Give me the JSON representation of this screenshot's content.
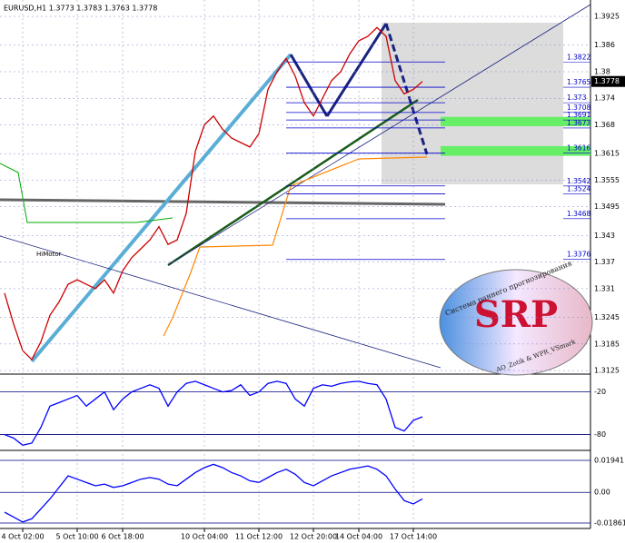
{
  "chart_data": [
    {
      "type": "line",
      "title": "EURUSD,H1  1.3773 1.3783 1.3763 1.3778",
      "color": "#cc0000",
      "values": [
        1.33,
        1.323,
        1.317,
        1.315,
        1.319,
        1.325,
        1.328,
        1.332,
        1.333,
        1.332,
        1.331,
        1.333,
        1.33,
        1.335,
        1.338,
        1.34,
        1.342,
        1.345,
        1.341,
        1.342,
        1.348,
        1.362,
        1.368,
        1.37,
        1.367,
        1.365,
        1.364,
        1.363,
        1.366,
        1.376,
        1.38,
        1.383,
        1.379,
        1.373,
        1.37,
        1.374,
        1.378,
        1.38,
        1.384,
        1.387,
        1.388,
        1.39,
        1.388,
        1.378,
        1.375,
        1.376,
        1.3778
      ],
      "ylim": [
        1.3117,
        1.3962
      ],
      "yticks": [
        1.3925,
        1.386,
        1.38,
        1.374,
        1.368,
        1.3615,
        1.3555,
        1.3495,
        1.343,
        1.337,
        1.331,
        1.3245,
        1.3185,
        1.3125
      ],
      "levels": [
        1.3822,
        1.3765,
        1.373,
        1.3708,
        1.3691,
        1.3673,
        1.3616,
        1.3542,
        1.3524,
        1.3468,
        1.3376
      ],
      "zones": [
        [
          1.3698,
          1.3677
        ],
        [
          1.3632,
          1.361
        ]
      ],
      "last_price": 1.3778,
      "annotations": [
        "HiMotor",
        "SRP",
        "Система раннего прогнозирования",
        "AO_Zotik & WPR_VSmark"
      ]
    },
    {
      "type": "line",
      "color": "#0000ff",
      "values": [
        -80,
        -85,
        -95,
        -92,
        -70,
        -40,
        -35,
        -30,
        -25,
        -40,
        -30,
        -20,
        -45,
        -30,
        -20,
        -15,
        -10,
        -15,
        -40,
        -20,
        -8,
        -5,
        -10,
        -15,
        -20,
        -18,
        -10,
        -25,
        -20,
        -8,
        -5,
        -8,
        -30,
        -40,
        -15,
        -10,
        -12,
        -8,
        -6,
        -5,
        -8,
        -10,
        -30,
        -70,
        -75,
        -60,
        -55
      ],
      "ylim": [
        -101,
        2.5
      ],
      "yticks": [
        -20,
        -80
      ]
    },
    {
      "type": "line",
      "color": "#0000ff",
      "categories": [
        null,
        null,
        "4 Oct 02:00",
        null,
        null,
        null,
        null,
        null,
        "5 Oct 10:00",
        null,
        null,
        null,
        null,
        "6 Oct 18:00",
        null,
        null,
        null,
        null,
        null,
        null,
        null,
        null,
        "10 Oct 04:00",
        null,
        null,
        null,
        null,
        null,
        "11 Oct 12:00",
        null,
        null,
        null,
        null,
        null,
        "12 Oct 20:00",
        null,
        null,
        null,
        null,
        "14 Oct 04:00",
        null,
        null,
        null,
        null,
        null,
        "17 Oct 14:00",
        null
      ],
      "values": [
        -0.012,
        -0.015,
        -0.018,
        -0.016,
        -0.01,
        -0.004,
        0.003,
        0.01,
        0.008,
        0.006,
        0.004,
        0.005,
        0.003,
        0.004,
        0.006,
        0.008,
        0.009,
        0.008,
        0.005,
        0.004,
        0.008,
        0.012,
        0.015,
        0.017,
        0.015,
        0.012,
        0.01,
        0.007,
        0.006,
        0.009,
        0.012,
        0.014,
        0.011,
        0.006,
        0.004,
        0.007,
        0.01,
        0.012,
        0.014,
        0.015,
        0.016,
        0.014,
        0.01,
        0.002,
        -0.005,
        -0.007,
        -0.004
      ],
      "ylim": [
        -0.0219,
        0.0249
      ],
      "yticks": [
        0.01941,
        {
          "value": 0,
          "label": "0.00"
        },
        -0.01861
      ]
    }
  ]
}
